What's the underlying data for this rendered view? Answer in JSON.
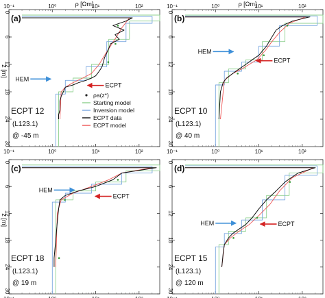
{
  "figure": {
    "top_axis_label": "ρ [Ωm]",
    "left_axis_label": "z [m]"
  },
  "colors": {
    "starting_model": "#8fd18f",
    "inversion_model": "#7aa7e0",
    "ecpt_data": "#111111",
    "ecpt_model": "#ee5555",
    "measured_points": "#3a9a3a",
    "hem_arrow": "#3d8fd8",
    "ecpt_arrow": "#d42222"
  },
  "legend": {
    "entries": [
      "ρa(z*)",
      "Starting model",
      "Inversion model",
      "ECPT data",
      "ECPT model"
    ]
  },
  "chart_data": [
    {
      "type": "line",
      "panel_label": "(a)",
      "well": "ECPT 12",
      "line": "(L123.1)",
      "offset": "@ -45 m",
      "x_scale": "log",
      "xlim": [
        0.1,
        300
      ],
      "x_ticks": [
        "10⁻¹",
        "10⁰",
        "10¹",
        "10²"
      ],
      "ylim": [
        0,
        30
      ],
      "y_ticks": [
        "0",
        "6",
        "12",
        "18",
        "24",
        "30"
      ],
      "y_inverted": true,
      "annotations": [
        {
          "text": "HEM",
          "rho": 1.0,
          "z": 15.2,
          "arrow": "hem"
        },
        {
          "text": "ECPT",
          "rho": 6.0,
          "z": 16.6,
          "arrow": "ecpt"
        }
      ],
      "series": [
        {
          "key": "ecpt_data",
          "rho": [
            0.2,
            70,
            50,
            25,
            45,
            28,
            35,
            22,
            20,
            18,
            16,
            15,
            14,
            13,
            12,
            11,
            10,
            8,
            6,
            4,
            3,
            2,
            1.8,
            1.6,
            1.5,
            1.5,
            1.5,
            1.4,
            1.4
          ],
          "z": [
            1.8,
            1.8,
            2.5,
            3.5,
            4.5,
            5.5,
            6.5,
            7.5,
            8.5,
            9.5,
            10.5,
            11.5,
            12.5,
            13,
            13.5,
            14,
            14.5,
            15,
            15.5,
            16,
            16.5,
            17,
            18,
            19,
            20,
            21,
            22,
            23,
            24
          ]
        },
        {
          "key": "ecpt_model",
          "rho": [
            0.2,
            60,
            40,
            30,
            22,
            16,
            12,
            8,
            5,
            3,
            2,
            1.6,
            1.5
          ],
          "z": [
            1.8,
            1.8,
            4,
            6,
            8,
            10,
            12,
            14,
            15,
            16,
            17,
            18,
            24
          ]
        },
        {
          "key": "starting_model",
          "rho": [
            0.2,
            300,
            300,
            60,
            60,
            20,
            20,
            8,
            8,
            3,
            3,
            1.4,
            1.4
          ],
          "z": [
            1.2,
            1.2,
            2.5,
            2.5,
            6.5,
            6.5,
            12,
            12,
            15,
            15,
            18,
            18,
            30
          ]
        },
        {
          "key": "inversion_model",
          "rho": [
            0.2,
            200,
            200,
            50,
            50,
            18,
            18,
            6,
            6,
            2,
            2,
            1.2,
            1.2
          ],
          "z": [
            1.5,
            1.5,
            3,
            3,
            7,
            7,
            12.5,
            12.5,
            15.5,
            15.5,
            18.5,
            18.5,
            30
          ]
        }
      ]
    },
    {
      "type": "line",
      "panel_label": "(b)",
      "well": "ECPT 10",
      "line": "(L123.1)",
      "offset": "@ 40 m",
      "x_scale": "log",
      "xlim": [
        0.1,
        300
      ],
      "x_ticks": [
        "10⁻¹",
        "10⁰",
        "10¹",
        "10²"
      ],
      "ylim": [
        0,
        30
      ],
      "y_ticks": [
        "0",
        "6",
        "12",
        "18",
        "24",
        "30"
      ],
      "y_inverted": true,
      "annotations": [
        {
          "text": "HEM",
          "rho": 2.8,
          "z": 9.2,
          "arrow": "hem"
        },
        {
          "text": "ECPT",
          "rho": 8.0,
          "z": 11.2,
          "arrow": "ecpt"
        }
      ],
      "series": [
        {
          "key": "ecpt_data",
          "rho": [
            0.2,
            150,
            60,
            35,
            25,
            20,
            15,
            10,
            7,
            5,
            3.5,
            2.5,
            1.8,
            1.5,
            1.3,
            1.2
          ],
          "z": [
            1.6,
            1.6,
            2.5,
            3.5,
            4.5,
            6,
            8,
            10,
            11,
            12,
            13,
            14,
            15,
            16,
            18,
            24
          ]
        },
        {
          "key": "ecpt_model",
          "rho": [
            0.2,
            120,
            50,
            30,
            20,
            14,
            9,
            6,
            4,
            2.5,
            1.6,
            1.3
          ],
          "z": [
            1.6,
            1.6,
            3,
            5,
            7,
            9,
            11,
            12,
            13,
            14,
            15.5,
            24
          ]
        },
        {
          "key": "starting_model",
          "rho": [
            0.2,
            300,
            300,
            40,
            40,
            12,
            12,
            5,
            5,
            2,
            2,
            1.2,
            1.2
          ],
          "z": [
            1.2,
            1.2,
            3,
            3,
            7,
            7,
            11,
            11,
            13,
            13,
            16,
            16,
            30
          ]
        },
        {
          "key": "inversion_model",
          "rho": [
            0.2,
            220,
            220,
            30,
            30,
            10,
            10,
            4,
            4,
            1.6,
            1.6,
            1.0,
            1.0
          ],
          "z": [
            1.4,
            1.4,
            3.5,
            3.5,
            8,
            8,
            11.5,
            11.5,
            13.5,
            13.5,
            16.5,
            16.5,
            30
          ]
        }
      ]
    },
    {
      "type": "line",
      "panel_label": "(c)",
      "well": "ECPT 18",
      "line": "(L123.1)",
      "offset": "@ 19 m",
      "x_scale": "log",
      "xlim": [
        0.1,
        300
      ],
      "x_ticks": [
        "10⁻¹",
        "10⁰",
        "10¹",
        "10²"
      ],
      "ylim": [
        0,
        30
      ],
      "y_ticks": [
        "0",
        "6",
        "12",
        "18",
        "24",
        "30"
      ],
      "y_inverted": true,
      "annotations": [
        {
          "text": "HEM",
          "rho": 3.5,
          "z": 6.8,
          "arrow": "hem"
        },
        {
          "text": "ECPT",
          "rho": 9.0,
          "z": 8.2,
          "arrow": "ecpt"
        }
      ],
      "series": [
        {
          "key": "ecpt_data",
          "rho": [
            0.2,
            250,
            40,
            25,
            10,
            4,
            2,
            1.5,
            1.4,
            1.3,
            1.2,
            1.1,
            1.1
          ],
          "z": [
            1.8,
            1.8,
            3,
            4.5,
            6,
            7,
            8,
            9,
            11,
            14,
            18,
            22,
            24
          ]
        },
        {
          "key": "ecpt_model",
          "rho": [
            0.2,
            200,
            40,
            20,
            8,
            3,
            1.6,
            1.3,
            1.2
          ],
          "z": [
            1.8,
            1.8,
            3,
            4.5,
            6,
            7.5,
            9,
            12,
            24
          ]
        },
        {
          "key": "starting_model",
          "rho": [
            0.2,
            300,
            300,
            50,
            50,
            10,
            10,
            3,
            3,
            1.2,
            1.2
          ],
          "z": [
            1.2,
            1.2,
            2.5,
            2.5,
            5,
            5,
            7,
            7,
            9,
            9,
            30
          ]
        },
        {
          "key": "inversion_model",
          "rho": [
            0.2,
            200,
            200,
            40,
            40,
            8,
            8,
            2,
            2,
            1.0,
            1.0
          ],
          "z": [
            1.5,
            1.5,
            3,
            3,
            5.5,
            5.5,
            7.5,
            7.5,
            9.5,
            9.5,
            30
          ]
        }
      ]
    },
    {
      "type": "line",
      "panel_label": "(d)",
      "well": "ECPT 15",
      "line": "(L123.1)",
      "offset": "@ 120 m",
      "x_scale": "log",
      "xlim": [
        0.1,
        300
      ],
      "x_ticks": [
        "10⁻¹",
        "10⁰",
        "10¹",
        "10²"
      ],
      "ylim": [
        0,
        30
      ],
      "y_ticks": [
        "0",
        "6",
        "12",
        "18",
        "24",
        "30"
      ],
      "y_inverted": true,
      "annotations": [
        {
          "text": "HEM",
          "rho": 3.2,
          "z": 14.2,
          "arrow": "hem"
        },
        {
          "text": "ECPT",
          "rho": 10.0,
          "z": 14.4,
          "arrow": "ecpt"
        }
      ],
      "series": [
        {
          "key": "ecpt_data",
          "rho": [
            0.2,
            200,
            80,
            40,
            25,
            15,
            10,
            7,
            5,
            3.5,
            2.5,
            2,
            1.6,
            1.5,
            1.4
          ],
          "z": [
            1.8,
            1.8,
            3,
            5,
            7,
            9,
            11,
            13,
            14.5,
            15.5,
            16.5,
            17.5,
            19,
            21,
            24
          ]
        },
        {
          "key": "ecpt_model",
          "rho": [
            0.2,
            180,
            60,
            30,
            18,
            10,
            6,
            3.5,
            2.2,
            1.6,
            1.4
          ],
          "z": [
            1.8,
            1.8,
            4,
            7,
            10,
            12.5,
            14.5,
            16,
            17.5,
            19,
            24
          ]
        },
        {
          "key": "starting_model",
          "rho": [
            0.2,
            300,
            300,
            50,
            50,
            15,
            15,
            5,
            5,
            2,
            2,
            1.2,
            1.2
          ],
          "z": [
            1.2,
            1.2,
            3,
            3,
            8,
            8,
            13,
            13,
            16,
            16,
            19,
            19,
            30
          ]
        },
        {
          "key": "inversion_model",
          "rho": [
            0.2,
            220,
            220,
            40,
            40,
            12,
            12,
            4,
            4,
            1.6,
            1.6,
            1.0,
            1.0
          ],
          "z": [
            1.4,
            1.4,
            3.5,
            3.5,
            9,
            9,
            13.5,
            13.5,
            16.5,
            16.5,
            19.5,
            19.5,
            30
          ]
        }
      ]
    }
  ]
}
